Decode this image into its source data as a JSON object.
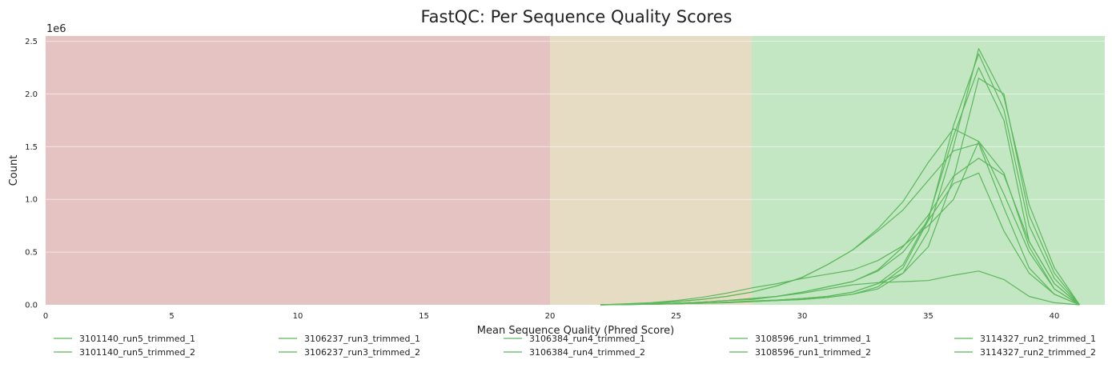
{
  "chart_data": {
    "type": "line",
    "title": "FastQC: Per Sequence Quality Scores",
    "xlabel": "Mean Sequence Quality (Phred Score)",
    "ylabel": "Count",
    "y_multiplier_label": "1e6",
    "xlim": [
      0,
      42
    ],
    "ylim": [
      0,
      2.55
    ],
    "x_ticks": [
      0,
      5,
      10,
      15,
      20,
      25,
      30,
      35,
      40
    ],
    "y_ticks": [
      0.0,
      0.5,
      1.0,
      1.5,
      2.0,
      2.5
    ],
    "y_tick_labels": [
      "0.0",
      "0.5",
      "1.0",
      "1.5",
      "2.0",
      "2.5"
    ],
    "grid": "horizontal",
    "legend_position": "bottom",
    "line_color": "#5cb85c",
    "bands": [
      {
        "from": 0,
        "to": 20,
        "color": "#e6c3c3"
      },
      {
        "from": 20,
        "to": 28,
        "color": "#e6dcc3"
      },
      {
        "from": 28,
        "to": 42,
        "color": "#c3e6c3"
      }
    ],
    "x": [
      22,
      23,
      24,
      25,
      26,
      27,
      28,
      29,
      30,
      31,
      32,
      33,
      34,
      35,
      36,
      37,
      38,
      39,
      40,
      41
    ],
    "series": [
      {
        "name": "3101140_run5_trimmed_1",
        "values": [
          0.0,
          0.002,
          0.005,
          0.01,
          0.015,
          0.02,
          0.03,
          0.04,
          0.05,
          0.07,
          0.1,
          0.17,
          0.35,
          0.8,
          1.7,
          2.38,
          1.85,
          0.75,
          0.25,
          0.0
        ]
      },
      {
        "name": "3101140_run5_trimmed_2",
        "values": [
          0.0,
          0.002,
          0.005,
          0.01,
          0.015,
          0.02,
          0.03,
          0.04,
          0.05,
          0.07,
          0.1,
          0.15,
          0.3,
          0.7,
          1.5,
          2.43,
          1.97,
          0.95,
          0.35,
          0.0
        ]
      },
      {
        "name": "3106237_run3_trimmed_1",
        "values": [
          0.0,
          0.003,
          0.008,
          0.015,
          0.025,
          0.04,
          0.06,
          0.08,
          0.12,
          0.17,
          0.22,
          0.32,
          0.5,
          0.8,
          1.15,
          1.25,
          0.7,
          0.3,
          0.1,
          0.0
        ]
      },
      {
        "name": "3106237_run3_trimmed_2",
        "values": [
          0.0,
          0.003,
          0.008,
          0.015,
          0.025,
          0.04,
          0.06,
          0.08,
          0.12,
          0.17,
          0.22,
          0.33,
          0.55,
          0.85,
          1.22,
          1.39,
          1.23,
          0.6,
          0.2,
          0.0
        ]
      },
      {
        "name": "3106384_run4_trimmed_1",
        "values": [
          0.0,
          0.002,
          0.005,
          0.01,
          0.015,
          0.025,
          0.035,
          0.045,
          0.06,
          0.08,
          0.12,
          0.2,
          0.38,
          0.82,
          1.6,
          2.25,
          1.75,
          0.6,
          0.2,
          0.0
        ]
      },
      {
        "name": "3106384_run4_trimmed_2",
        "values": [
          0.0,
          0.002,
          0.005,
          0.01,
          0.015,
          0.025,
          0.035,
          0.045,
          0.06,
          0.08,
          0.12,
          0.2,
          0.3,
          0.55,
          1.2,
          2.15,
          2.0,
          0.85,
          0.3,
          0.0
        ]
      },
      {
        "name": "3108596_run1_trimmed_1",
        "values": [
          0.0,
          0.005,
          0.015,
          0.03,
          0.05,
          0.08,
          0.12,
          0.18,
          0.26,
          0.38,
          0.52,
          0.72,
          0.98,
          1.35,
          1.67,
          1.55,
          1.05,
          0.5,
          0.15,
          0.0
        ]
      },
      {
        "name": "3108596_run1_trimmed_2",
        "values": [
          0.0,
          0.005,
          0.015,
          0.03,
          0.05,
          0.08,
          0.12,
          0.18,
          0.26,
          0.38,
          0.52,
          0.7,
          0.9,
          1.18,
          1.46,
          1.53,
          0.92,
          0.35,
          0.1,
          0.0
        ]
      },
      {
        "name": "3114327_run2_trimmed_1",
        "values": [
          0.0,
          0.01,
          0.02,
          0.04,
          0.07,
          0.11,
          0.16,
          0.2,
          0.25,
          0.29,
          0.33,
          0.42,
          0.56,
          0.75,
          1.0,
          1.55,
          1.25,
          0.55,
          0.15,
          0.0
        ]
      },
      {
        "name": "3114327_run2_trimmed_2",
        "values": [
          0.0,
          0.003,
          0.008,
          0.015,
          0.025,
          0.04,
          0.05,
          0.08,
          0.11,
          0.15,
          0.19,
          0.21,
          0.22,
          0.23,
          0.28,
          0.32,
          0.24,
          0.08,
          0.02,
          0.0
        ]
      }
    ]
  }
}
